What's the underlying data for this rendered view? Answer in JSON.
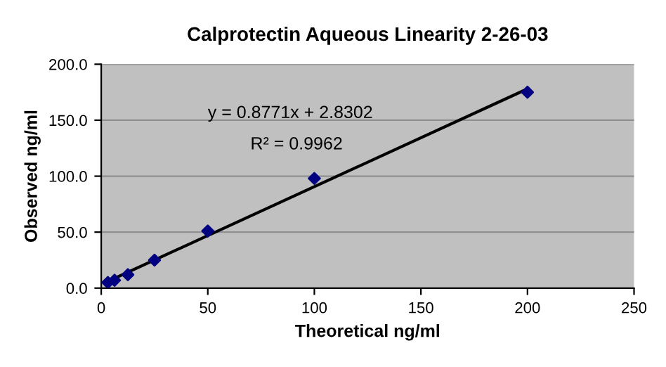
{
  "chart_data": {
    "type": "scatter",
    "title": "Calprotectin Aqueous Linearity 2-26-03",
    "xlabel": "Theoretical ng/ml",
    "ylabel": "Observed ng/ml",
    "x": [
      3.125,
      6.25,
      12.5,
      25,
      50,
      100,
      200
    ],
    "series": [
      {
        "color": "#000080",
        "marker": "diamond",
        "values": [
          5,
          7,
          12,
          25,
          51,
          98,
          175
        ]
      },
      {
        "type": "line",
        "color": "#000000",
        "x": [
          3.125,
          200
        ],
        "values": [
          6,
          178
        ],
        "line_style": "solid"
      }
    ],
    "xlim": [
      0,
      250
    ],
    "xticks": [
      0,
      50,
      100,
      150,
      200,
      250
    ],
    "ylim": [
      0,
      200
    ],
    "yticks": [
      {
        "value": 0,
        "label": "0.0"
      },
      {
        "value": 50,
        "label": "50.0"
      },
      {
        "value": 100,
        "label": "100.0"
      },
      {
        "value": 150,
        "label": "150.0"
      },
      {
        "value": 200,
        "label": "200.0"
      }
    ],
    "grid": "y",
    "annotations": [
      "y = 0.8771x + 2.8302",
      "R² = 0.9962"
    ]
  }
}
